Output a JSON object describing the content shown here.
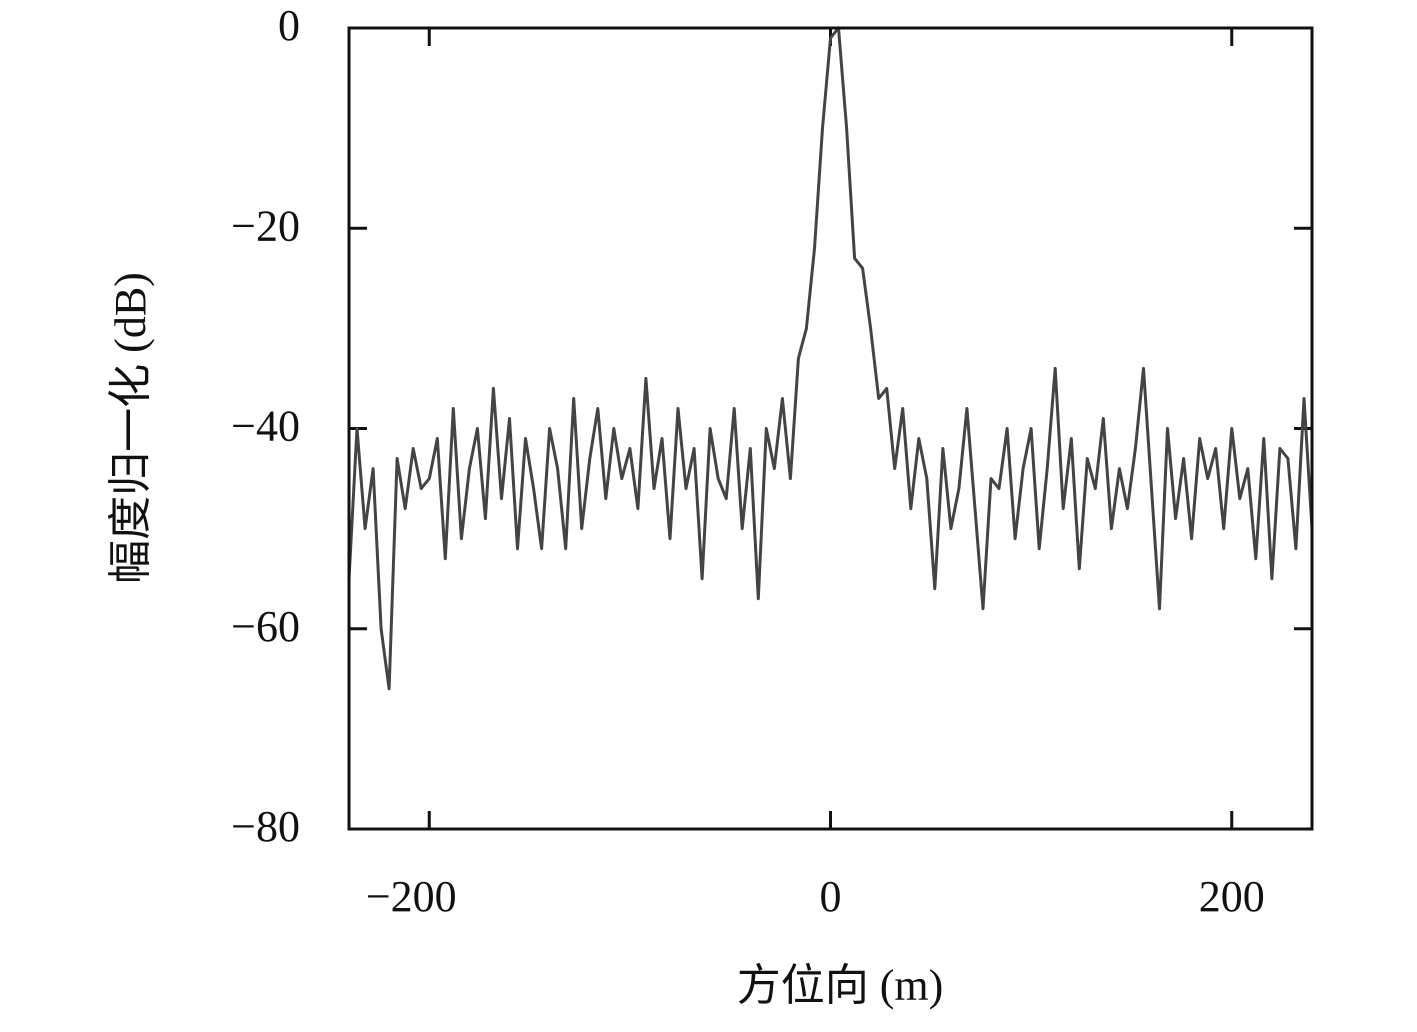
{
  "chart_data": {
    "type": "line",
    "xlabel": "方位向 (m)",
    "ylabel": "幅度归一化 (dB)",
    "color": "#444444",
    "xlim": [
      -240,
      240
    ],
    "ylim": [
      -80,
      0
    ],
    "xticks": [
      {
        "value": -200,
        "label": "−200"
      },
      0,
      200
    ],
    "yticks": [
      0,
      {
        "value": -20,
        "label": "−20"
      },
      {
        "value": -40,
        "label": "−40"
      },
      {
        "value": -60,
        "label": "−60"
      },
      {
        "value": -80,
        "label": "−80"
      }
    ],
    "x": [
      -240,
      -236,
      -232,
      -228,
      -224,
      -220,
      -216,
      -212,
      -208,
      -204,
      -200,
      -196,
      -192,
      -188,
      -184,
      -180,
      -176,
      -172,
      -168,
      -164,
      -160,
      -156,
      -152,
      -148,
      -144,
      -140,
      -136,
      -132,
      -128,
      -124,
      -120,
      -116,
      -112,
      -108,
      -104,
      -100,
      -96,
      -92,
      -88,
      -84,
      -80,
      -76,
      -72,
      -68,
      -64,
      -60,
      -56,
      -52,
      -48,
      -44,
      -40,
      -36,
      -32,
      -28,
      -24,
      -20,
      -16,
      -12,
      -8,
      -4,
      0,
      4,
      8,
      12,
      16,
      20,
      24,
      28,
      32,
      36,
      40,
      44,
      48,
      52,
      56,
      60,
      64,
      68,
      72,
      76,
      80,
      84,
      88,
      92,
      96,
      100,
      104,
      108,
      112,
      116,
      120,
      124,
      128,
      132,
      136,
      140,
      144,
      148,
      152,
      156,
      160,
      164,
      168,
      172,
      176,
      180,
      184,
      188,
      192,
      196,
      200,
      204,
      208,
      212,
      216,
      220,
      224,
      228,
      232,
      236,
      240
    ],
    "values": [
      -55,
      -40,
      -50,
      -44,
      -60,
      -66,
      -43,
      -48,
      -42,
      -46,
      -45,
      -41,
      -53,
      -38,
      -51,
      -44,
      -40,
      -49,
      -36,
      -47,
      -39,
      -52,
      -41,
      -46,
      -52,
      -40,
      -44,
      -52,
      -37,
      -50,
      -43,
      -38,
      -47,
      -40,
      -45,
      -42,
      -48,
      -35,
      -46,
      -41,
      -51,
      -38,
      -46,
      -42,
      -55,
      -40,
      -45,
      -47,
      -38,
      -50,
      -42,
      -57,
      -40,
      -44,
      -37,
      -45,
      -33,
      -30,
      -22,
      -10,
      -1,
      0,
      -10,
      -23,
      -24,
      -30,
      -37,
      -36,
      -44,
      -38,
      -48,
      -41,
      -45,
      -56,
      -42,
      -50,
      -46,
      -38,
      -48,
      -58,
      -45,
      -46,
      -40,
      -51,
      -44,
      -40,
      -52,
      -44,
      -34,
      -48,
      -41,
      -54,
      -43,
      -46,
      -39,
      -50,
      -44,
      -48,
      -42,
      -34,
      -46,
      -58,
      -40,
      -49,
      -43,
      -51,
      -41,
      -45,
      -42,
      -50,
      -40,
      -47,
      -44,
      -53,
      -41,
      -55,
      -42,
      -43,
      -52,
      -37,
      -50
    ]
  }
}
